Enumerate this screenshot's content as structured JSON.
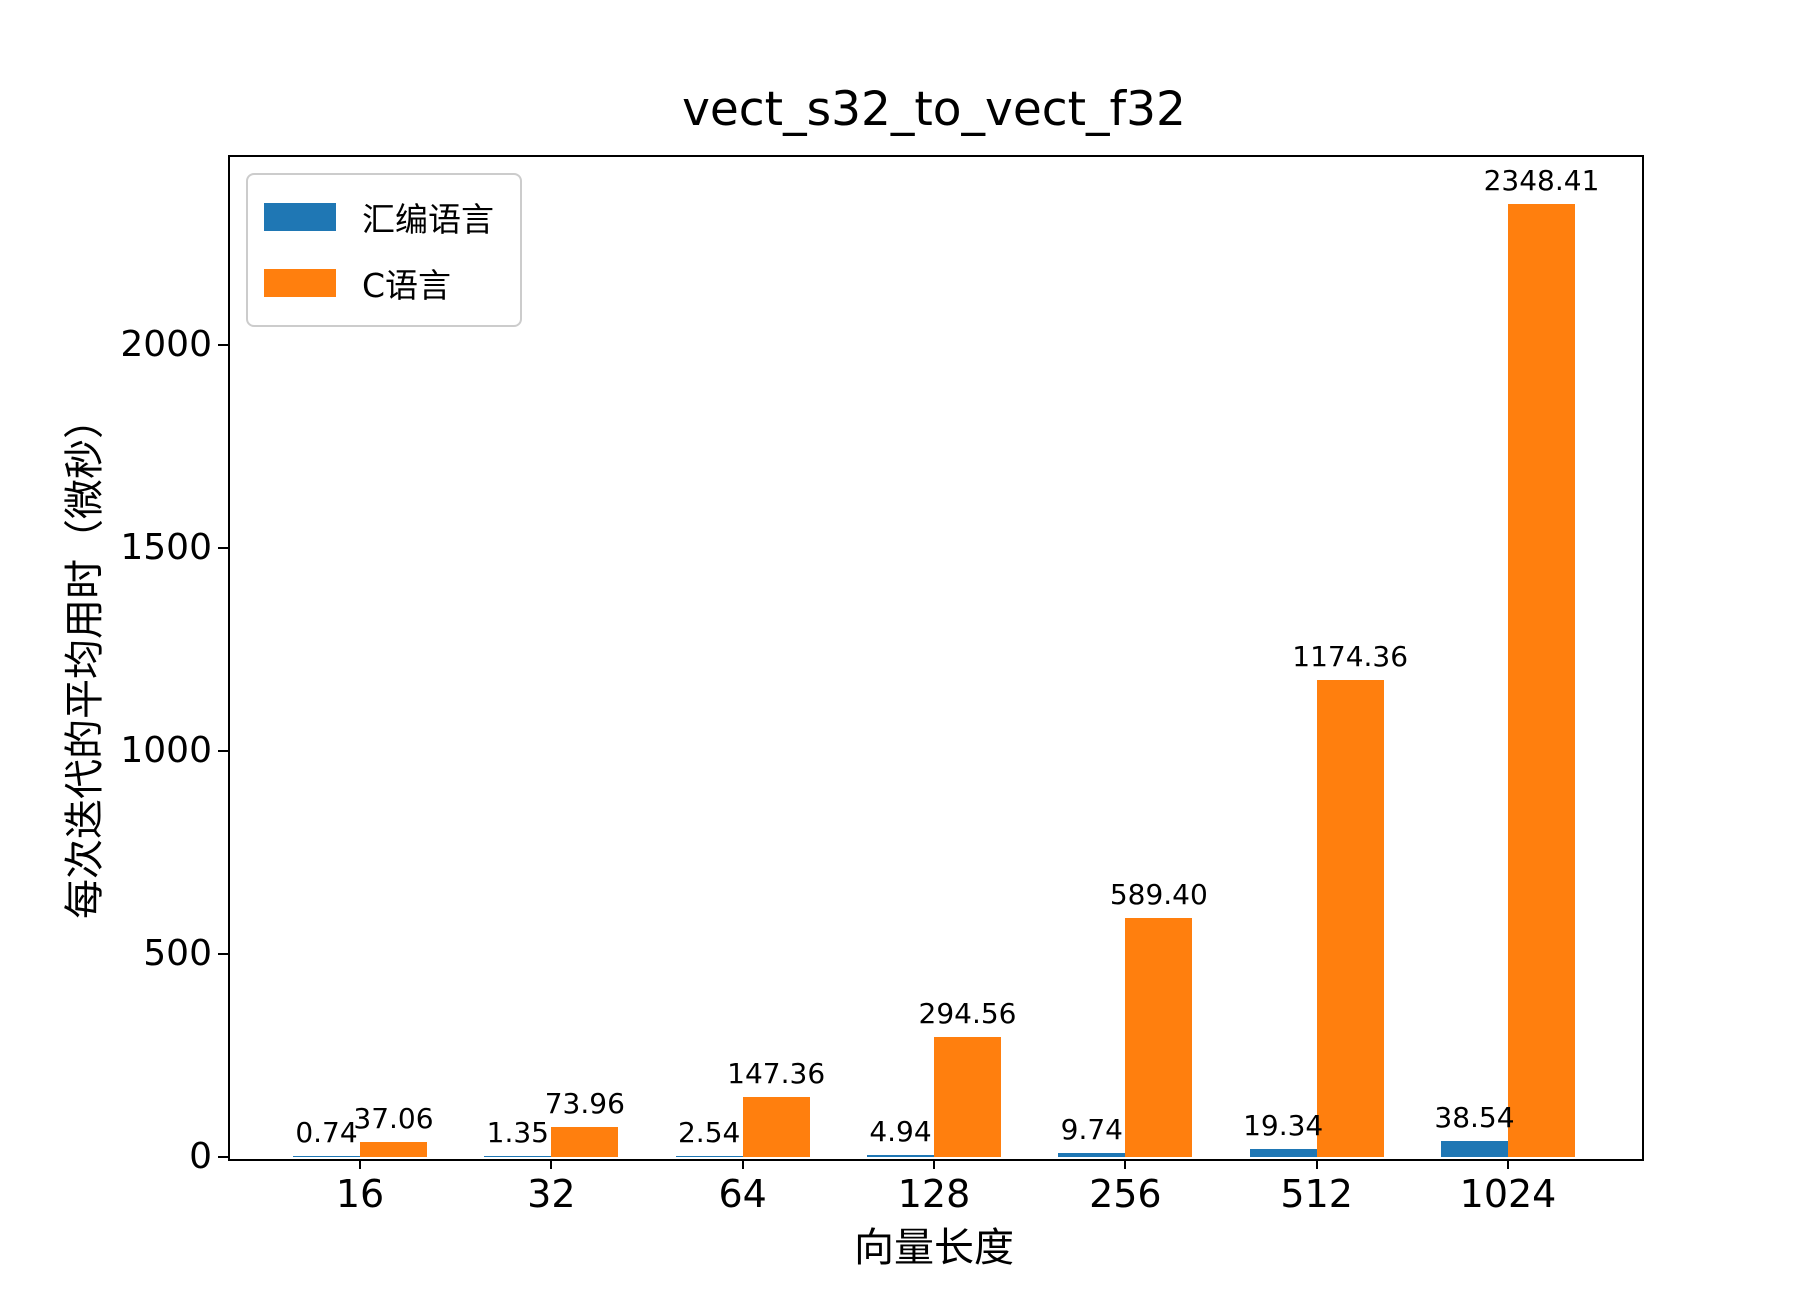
{
  "chart_data": {
    "type": "bar",
    "title": "vect_s32_to_vect_f32",
    "xlabel": "向量长度",
    "ylabel": "每次迭代的平均用时（微秒）",
    "categories": [
      "16",
      "32",
      "64",
      "128",
      "256",
      "512",
      "1024"
    ],
    "series": [
      {
        "name": "汇编语言",
        "color": "#1f77b4",
        "values": [
          0.74,
          1.35,
          2.54,
          4.94,
          9.74,
          19.34,
          38.54
        ],
        "labels": [
          "0.74",
          "1.35",
          "2.54",
          "4.94",
          "9.74",
          "19.34",
          "38.54"
        ]
      },
      {
        "name": "C语言",
        "color": "#ff7f0e",
        "values": [
          37.06,
          73.96,
          147.36,
          294.56,
          589.4,
          1174.36,
          2348.41
        ],
        "labels": [
          "37.06",
          "73.96",
          "147.36",
          "294.56",
          "589.40",
          "1174.36",
          "2348.41"
        ]
      }
    ],
    "yticks": [
      0,
      500,
      1000,
      1500,
      2000
    ],
    "ytick_labels": [
      "0",
      "500",
      "1000",
      "1500",
      "2000"
    ],
    "ylim": [
      0,
      2468
    ],
    "grid": false,
    "legend_position": "upper left",
    "background_color": "#ffffff",
    "text_color": "#000000"
  }
}
